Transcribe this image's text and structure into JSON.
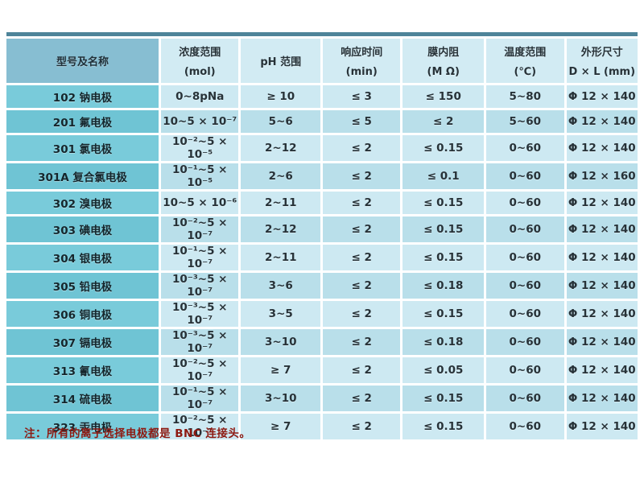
{
  "colors": {
    "page_background": "#ffffff",
    "top_border": "#4e8499",
    "header_model_bg": "#87bed2",
    "header_bg": "#d2ebf3",
    "model_col_bg_even": "#79cbda",
    "model_col_bg_odd": "#6fc4d4",
    "row_bg_even": "#cde9f2",
    "row_bg_odd": "#b9dfea",
    "text": "#273238",
    "note_text": "#8e1a12"
  },
  "table": {
    "columns": [
      {
        "title": "型号及名称",
        "sub": ""
      },
      {
        "title": "浓度范围",
        "sub": "(mol)"
      },
      {
        "title": "pH 范围",
        "sub": ""
      },
      {
        "title": "响应时间",
        "sub": "(min)"
      },
      {
        "title": "膜内阻",
        "sub": "(M Ω)"
      },
      {
        "title": "温度范围",
        "sub": "(℃)"
      },
      {
        "title": "外形尺寸",
        "sub": "D × L (mm)"
      }
    ],
    "rows": [
      {
        "model": "102 钠电极",
        "conc": "0~8pNa",
        "ph": "≥ 10",
        "resp": "≤ 3",
        "resist": "≤ 150",
        "temp": "5~80",
        "size": "Φ 12 × 140"
      },
      {
        "model": "201 氟电极",
        "conc": "10~5 × 10⁻⁷",
        "ph": "5~6",
        "resp": "≤ 5",
        "resist": "≤ 2",
        "temp": "5~60",
        "size": "Φ 12 × 140"
      },
      {
        "model": "301 氯电极",
        "conc": "10⁻²~5 × 10⁻⁵",
        "ph": "2~12",
        "resp": "≤ 2",
        "resist": "≤ 0.15",
        "temp": "0~60",
        "size": "Φ 12 × 140"
      },
      {
        "model": "301A 复合氯电极",
        "conc": "10⁻¹~5 × 10⁻⁵",
        "ph": "2~6",
        "resp": "≤ 2",
        "resist": "≤ 0.1",
        "temp": "0~60",
        "size": "Φ 12 × 160"
      },
      {
        "model": "302 溴电极",
        "conc": "10~5 × 10⁻⁶",
        "ph": "2~11",
        "resp": "≤ 2",
        "resist": "≤ 0.15",
        "temp": "0~60",
        "size": "Φ 12 × 140"
      },
      {
        "model": "303 碘电极",
        "conc": "10⁻²~5 × 10⁻⁷",
        "ph": "2~12",
        "resp": "≤ 2",
        "resist": "≤ 0.15",
        "temp": "0~60",
        "size": "Φ 12 × 140"
      },
      {
        "model": "304 银电极",
        "conc": "10⁻¹~5 × 10⁻⁷",
        "ph": "2~11",
        "resp": "≤ 2",
        "resist": "≤ 0.15",
        "temp": "0~60",
        "size": "Φ 12 × 140"
      },
      {
        "model": "305 铅电极",
        "conc": "10⁻³~5 × 10⁻⁷",
        "ph": "3~6",
        "resp": "≤ 2",
        "resist": "≤ 0.18",
        "temp": "0~60",
        "size": "Φ 12 × 140"
      },
      {
        "model": "306 铜电极",
        "conc": "10⁻³~5 × 10⁻⁷",
        "ph": "3~5",
        "resp": "≤ 2",
        "resist": "≤ 0.15",
        "temp": "0~60",
        "size": "Φ 12 × 140"
      },
      {
        "model": "307 镉电极",
        "conc": "10⁻³~5 × 10⁻⁷",
        "ph": "3~10",
        "resp": "≤ 2",
        "resist": "≤ 0.18",
        "temp": "0~60",
        "size": "Φ 12 × 140"
      },
      {
        "model": "313 氰电极",
        "conc": "10⁻²~5 × 10⁻⁷",
        "ph": "≥ 7",
        "resp": "≤ 2",
        "resist": "≤ 0.05",
        "temp": "0~60",
        "size": "Φ 12 × 140"
      },
      {
        "model": "314 硫电极",
        "conc": "10⁻¹~5 × 10⁻⁷",
        "ph": "3~10",
        "resp": "≤ 2",
        "resist": "≤ 0.15",
        "temp": "0~60",
        "size": "Φ 12 × 140"
      },
      {
        "model": "323 汞电极",
        "conc": "10⁻²~5 × 10⁻⁷",
        "ph": "≥ 7",
        "resp": "≤ 2",
        "resist": "≤ 0.15",
        "temp": "0~60",
        "size": "Φ 12 × 140"
      }
    ]
  },
  "note": {
    "text": "注：所有的离子选择电极都是 BNC 连接头。"
  }
}
